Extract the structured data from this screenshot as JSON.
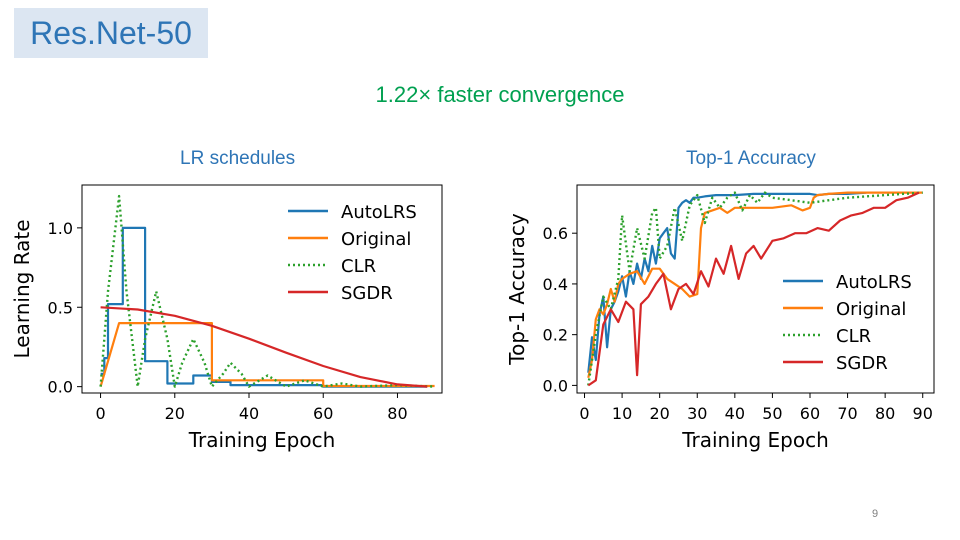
{
  "slide": {
    "title": "Res.Net-50",
    "subtitle": "1.22×  faster  convergence",
    "page_number": "9",
    "left_panel_title": "LR  schedules",
    "right_panel_title": "Top-1  Accuracy"
  },
  "colors": {
    "autolrs": "#1f77b4",
    "original": "#ff7f0e",
    "clr": "#2ca02c",
    "sgdr": "#d62728"
  },
  "chart_data": [
    {
      "type": "line",
      "xlabel": "Training Epoch",
      "ylabel": "Learning Rate",
      "xlim": [
        -5,
        92
      ],
      "ylim": [
        -0.04,
        1.27
      ],
      "xticks": [
        0,
        20,
        40,
        60,
        80
      ],
      "yticks": [
        0.0,
        0.5,
        1.0
      ],
      "ytick_labels": [
        "0.0",
        "0.5",
        "1.0"
      ],
      "legend": "top-right",
      "series": [
        {
          "name": "AutoLRS",
          "style": "solid",
          "x": [
            0,
            1,
            1,
            2,
            2,
            6,
            6,
            12,
            12,
            18,
            18,
            25,
            25,
            30,
            30,
            35,
            35,
            60,
            60,
            88
          ],
          "y": [
            0.08,
            0.08,
            0.18,
            0.18,
            0.52,
            0.52,
            1.0,
            1.0,
            0.16,
            0.16,
            0.02,
            0.02,
            0.07,
            0.07,
            0.03,
            0.03,
            0.01,
            0.01,
            0.0,
            0.0
          ]
        },
        {
          "name": "Original",
          "style": "solid",
          "x": [
            0,
            5,
            30,
            30,
            60,
            60,
            90
          ],
          "y": [
            0.0,
            0.4,
            0.4,
            0.04,
            0.04,
            0.004,
            0.004
          ]
        },
        {
          "name": "CLR",
          "style": "dotted",
          "x": [
            0,
            2,
            5,
            7,
            10,
            12,
            15,
            18,
            20,
            22,
            25,
            28,
            30,
            33,
            35,
            38,
            40,
            45,
            50,
            55,
            60,
            65,
            70,
            80,
            90
          ],
          "y": [
            0.0,
            0.6,
            1.2,
            0.6,
            0.0,
            0.3,
            0.6,
            0.3,
            0.0,
            0.15,
            0.3,
            0.15,
            0.0,
            0.08,
            0.15,
            0.08,
            0.0,
            0.07,
            0.0,
            0.04,
            0.0,
            0.02,
            0.0,
            0.01,
            0.0
          ]
        },
        {
          "name": "SGDR",
          "style": "solid",
          "x": [
            0,
            10,
            20,
            30,
            40,
            50,
            60,
            70,
            80,
            88
          ],
          "y": [
            0.5,
            0.486,
            0.446,
            0.383,
            0.302,
            0.214,
            0.13,
            0.06,
            0.014,
            0.0
          ]
        }
      ]
    },
    {
      "type": "line",
      "xlabel": "Training Epoch",
      "ylabel": "Top-1 Accuracy",
      "xlim": [
        -2,
        93
      ],
      "ylim": [
        -0.03,
        0.79
      ],
      "xticks": [
        0,
        10,
        20,
        30,
        40,
        50,
        60,
        70,
        80,
        90
      ],
      "yticks": [
        0.0,
        0.2,
        0.4,
        0.6
      ],
      "ytick_labels": [
        "0.0",
        "0.2",
        "0.4",
        "0.6"
      ],
      "legend": "center-right",
      "series": [
        {
          "name": "AutoLRS",
          "style": "solid",
          "x": [
            1,
            2,
            3,
            4,
            5,
            6,
            7,
            8,
            9,
            10,
            11,
            12,
            13,
            14,
            15,
            16,
            17,
            18,
            19,
            20,
            21,
            22,
            23,
            24,
            25,
            26,
            27,
            28,
            29,
            30,
            32,
            35,
            40,
            45,
            50,
            55,
            60,
            62,
            65,
            70,
            75
          ],
          "y": [
            0.05,
            0.19,
            0.1,
            0.28,
            0.35,
            0.15,
            0.3,
            0.33,
            0.37,
            0.43,
            0.35,
            0.45,
            0.4,
            0.48,
            0.42,
            0.5,
            0.45,
            0.55,
            0.48,
            0.58,
            0.6,
            0.62,
            0.52,
            0.5,
            0.7,
            0.72,
            0.73,
            0.72,
            0.74,
            0.74,
            0.745,
            0.75,
            0.75,
            0.755,
            0.755,
            0.755,
            0.755,
            0.75,
            0.755,
            0.755,
            0.76
          ]
        },
        {
          "name": "Original",
          "style": "solid",
          "x": [
            1,
            2,
            3,
            4,
            5,
            6,
            7,
            8,
            9,
            10,
            12,
            14,
            16,
            18,
            20,
            22,
            24,
            26,
            28,
            30,
            31,
            32,
            34,
            36,
            38,
            40,
            45,
            50,
            55,
            58,
            60,
            61,
            62,
            65,
            70,
            75,
            80,
            85,
            90
          ],
          "y": [
            0.03,
            0.1,
            0.26,
            0.3,
            0.28,
            0.32,
            0.38,
            0.33,
            0.4,
            0.42,
            0.44,
            0.45,
            0.4,
            0.46,
            0.46,
            0.42,
            0.4,
            0.38,
            0.35,
            0.36,
            0.62,
            0.68,
            0.69,
            0.7,
            0.68,
            0.7,
            0.7,
            0.7,
            0.71,
            0.69,
            0.7,
            0.74,
            0.75,
            0.755,
            0.76,
            0.76,
            0.76,
            0.76,
            0.76
          ]
        },
        {
          "name": "CLR",
          "style": "dotted",
          "x": [
            1,
            3,
            5,
            7,
            9,
            10,
            12,
            14,
            16,
            18,
            19,
            20,
            22,
            24,
            26,
            28,
            30,
            32,
            34,
            36,
            38,
            40,
            42,
            44,
            46,
            48,
            50,
            55,
            60,
            70,
            80,
            90
          ],
          "y": [
            0.0,
            0.2,
            0.35,
            0.3,
            0.42,
            0.67,
            0.45,
            0.62,
            0.5,
            0.68,
            0.7,
            0.5,
            0.55,
            0.7,
            0.57,
            0.71,
            0.75,
            0.64,
            0.74,
            0.7,
            0.74,
            0.76,
            0.69,
            0.75,
            0.72,
            0.76,
            0.74,
            0.73,
            0.72,
            0.74,
            0.75,
            0.76
          ]
        },
        {
          "name": "SGDR",
          "style": "solid",
          "x": [
            1,
            3,
            5,
            7,
            9,
            11,
            13,
            14,
            15,
            17,
            19,
            21,
            23,
            25,
            27,
            29,
            31,
            33,
            35,
            37,
            39,
            41,
            43,
            45,
            47,
            50,
            53,
            56,
            59,
            62,
            65,
            68,
            71,
            74,
            77,
            80,
            83,
            86,
            89
          ],
          "y": [
            0.0,
            0.02,
            0.24,
            0.3,
            0.25,
            0.33,
            0.3,
            0.04,
            0.32,
            0.35,
            0.4,
            0.44,
            0.3,
            0.38,
            0.4,
            0.36,
            0.45,
            0.39,
            0.5,
            0.44,
            0.55,
            0.42,
            0.52,
            0.55,
            0.5,
            0.57,
            0.58,
            0.6,
            0.6,
            0.62,
            0.61,
            0.65,
            0.67,
            0.68,
            0.7,
            0.7,
            0.73,
            0.74,
            0.76
          ]
        }
      ]
    }
  ]
}
